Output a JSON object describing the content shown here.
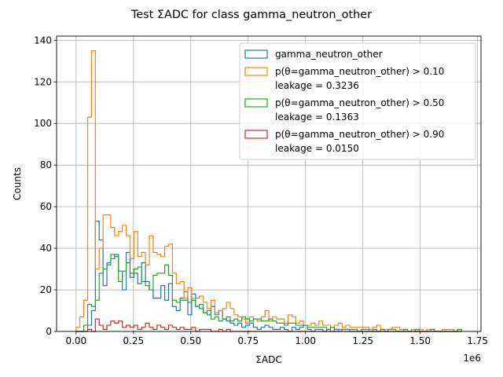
{
  "chart_data": {
    "type": "histogram",
    "title": "Test ΣADC for class gamma_neutron_other",
    "xlabel": "ΣADC",
    "ylabel": "Counts",
    "x_offset_label": "1e6",
    "xlim": [
      -0.085,
      1.765
    ],
    "ylim": [
      0,
      142
    ],
    "x_ticks": [
      0.0,
      0.25,
      0.5,
      0.75,
      1.0,
      1.25,
      1.5,
      1.75
    ],
    "x_tick_labels": [
      "0.00",
      "0.25",
      "0.50",
      "0.75",
      "1.00",
      "1.25",
      "1.50",
      "1.75"
    ],
    "y_ticks": [
      0,
      20,
      40,
      60,
      80,
      100,
      120,
      140
    ],
    "y_tick_labels": [
      "0",
      "20",
      "40",
      "60",
      "80",
      "100",
      "120",
      "140"
    ],
    "grid": true,
    "legend_position": "top-right",
    "bin_start": 0.0,
    "bin_width": 0.0168,
    "series": [
      {
        "name": "gamma_neutron_other",
        "color": "#1f77b4",
        "counts": [
          0,
          0,
          0,
          3,
          10,
          53,
          44,
          22,
          33,
          35,
          37,
          29,
          20,
          38,
          26,
          28,
          23,
          33,
          24,
          20,
          16,
          16,
          22,
          15,
          23,
          12,
          10,
          16,
          19,
          8,
          18,
          12,
          11,
          9,
          8,
          12,
          8,
          10,
          6,
          5,
          4,
          3,
          4,
          2,
          3,
          4,
          2,
          1,
          2,
          3,
          2,
          1,
          1,
          2,
          1,
          0,
          2,
          1,
          2,
          3,
          1,
          0,
          1,
          1,
          0,
          1,
          0,
          1,
          0,
          1,
          1,
          0,
          0,
          0,
          0,
          0,
          0,
          0,
          0,
          0,
          0,
          0,
          0,
          0,
          0,
          0,
          0,
          0,
          0,
          0,
          0,
          0,
          0,
          0,
          0,
          0,
          0,
          0,
          0,
          0
        ]
      },
      {
        "name": "p(θ=gamma_neutron_other) > 0.10",
        "legend_lines": [
          "p(θ=gamma_neutron_other) > 0.10",
          "leakage = 0.3236"
        ],
        "color": "#ff7f0e",
        "counts": [
          2,
          7,
          15,
          103,
          135,
          30,
          40,
          56,
          56,
          50,
          46,
          48,
          51,
          46,
          35,
          48,
          36,
          38,
          32,
          46,
          38,
          37,
          36,
          41,
          42,
          28,
          23,
          24,
          16,
          21,
          16,
          16,
          17,
          14,
          11,
          15,
          9,
          10,
          11,
          14,
          11,
          8,
          7,
          6,
          4,
          7,
          6,
          5,
          7,
          10,
          5,
          7,
          6,
          6,
          4,
          8,
          7,
          4,
          5,
          3,
          3,
          4,
          3,
          5,
          3,
          3,
          2,
          3,
          4,
          2,
          3,
          2,
          2,
          2,
          2,
          2,
          1,
          2,
          3,
          1,
          1,
          1,
          2,
          2,
          1,
          1,
          0,
          1,
          0,
          1,
          0,
          1,
          1,
          0,
          0,
          1,
          1,
          1,
          0,
          1
        ]
      },
      {
        "name": "p(θ=gamma_neutron_other) > 0.50",
        "legend_lines": [
          "p(θ=gamma_neutron_other) > 0.50",
          "leakage = 0.1363"
        ],
        "color": "#2ca02c",
        "counts": [
          0,
          0,
          3,
          13,
          12,
          15,
          28,
          30,
          32,
          37,
          36,
          24,
          29,
          33,
          28,
          30,
          31,
          24,
          22,
          20,
          27,
          28,
          28,
          32,
          27,
          15,
          14,
          15,
          15,
          14,
          15,
          12,
          13,
          9,
          10,
          6,
          7,
          5,
          6,
          7,
          5,
          6,
          5,
          7,
          6,
          5,
          6,
          6,
          5,
          5,
          6,
          5,
          4,
          4,
          3,
          4,
          4,
          3,
          3,
          3,
          2,
          2,
          2,
          2,
          2,
          1,
          2,
          1,
          1,
          1,
          1,
          1,
          1,
          0,
          1,
          1,
          0,
          1,
          0,
          1,
          0,
          1,
          1,
          0,
          0,
          1,
          0,
          0,
          1,
          0,
          0,
          0,
          1,
          0,
          0,
          0,
          0,
          0,
          0,
          1
        ]
      },
      {
        "name": "p(θ=gamma_neutron_other) > 0.90",
        "legend_lines": [
          "p(θ=gamma_neutron_other) > 0.90",
          "leakage = 0.0150"
        ],
        "color": "#d62728",
        "counts": [
          0,
          0,
          0,
          1,
          0,
          6,
          3,
          1,
          3,
          5,
          4,
          5,
          2,
          3,
          2,
          3,
          1,
          2,
          4,
          2,
          1,
          3,
          2,
          1,
          3,
          2,
          1,
          2,
          1,
          1,
          2,
          0,
          1,
          1,
          1,
          0,
          0,
          1,
          0,
          1,
          0,
          0,
          0,
          0,
          0,
          0,
          0,
          0,
          0,
          0,
          0,
          0,
          0,
          0,
          0,
          0,
          0,
          0,
          0,
          0,
          0,
          0,
          0,
          0,
          0,
          0,
          0,
          0,
          0,
          0,
          0,
          0,
          0,
          0,
          0,
          0,
          0,
          0,
          0,
          0,
          0,
          0,
          0,
          0,
          0,
          0,
          0,
          0,
          0,
          0,
          0,
          0,
          0,
          0,
          0,
          0,
          0,
          0,
          0,
          0
        ]
      }
    ]
  }
}
